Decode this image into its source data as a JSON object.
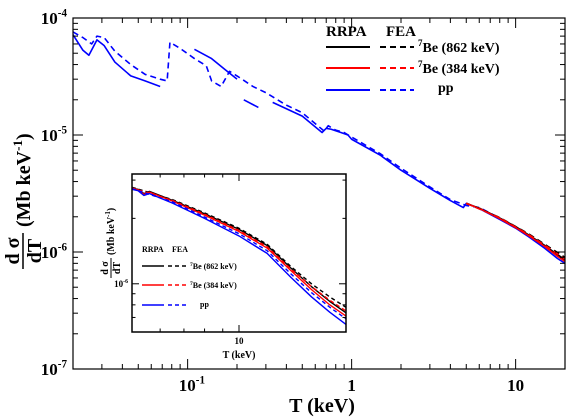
{
  "chart_data": [
    {
      "type": "line",
      "scale": {
        "x": "log",
        "y": "log"
      },
      "xlabel": "T (keV)",
      "ylabel_num": "d σ",
      "ylabel_den": "dT",
      "ylabel_unit": "(Mb keV",
      "ylabel_unit_exp": "-1",
      "ylabel_unit_close": ")",
      "xlim": [
        0.02,
        20
      ],
      "ylim": [
        1e-07,
        0.0001
      ],
      "x_ticks": [
        {
          "value": 0.1,
          "base": "10",
          "exp": "-1"
        },
        {
          "value": 1,
          "base": "1",
          "exp": ""
        },
        {
          "value": 10,
          "base": "10",
          "exp": ""
        }
      ],
      "y_ticks": [
        {
          "value": 1e-07,
          "base": "10",
          "exp": "-7"
        },
        {
          "value": 1e-06,
          "base": "10",
          "exp": "-6"
        },
        {
          "value": 1e-05,
          "base": "10",
          "exp": "-5"
        },
        {
          "value": 0.0001,
          "base": "10",
          "exp": "-4"
        }
      ],
      "legend": {
        "position": "top-right",
        "header_solid": "RRPA",
        "header_dashed": "FEA",
        "entries": [
          {
            "prefix_sup": "7",
            "text": "Be (862 keV)",
            "color": "#000000"
          },
          {
            "prefix_sup": "7",
            "text": "Be (384 keV)",
            "color": "#ff0000"
          },
          {
            "prefix_sup": "",
            "text": "pp",
            "color": "#0000ff"
          }
        ]
      },
      "series": [
        {
          "model": "RRPA",
          "source": "pp",
          "color": "#0000ff",
          "dash": false,
          "segments": [
            [
              [
                0.02,
                7.2e-05
              ],
              [
                0.023,
                5.3e-05
              ],
              [
                0.025,
                4.8e-05
              ],
              [
                0.028,
                6.5e-05
              ],
              [
                0.031,
                5.8e-05
              ],
              [
                0.036,
                4.2e-05
              ],
              [
                0.045,
                3.2e-05
              ],
              [
                0.055,
                2.9e-05
              ],
              [
                0.068,
                2.6e-05
              ]
            ],
            [
              [
                0.11,
                5.4e-05
              ],
              [
                0.14,
                4.5e-05
              ],
              [
                0.17,
                3.6e-05
              ],
              [
                0.2,
                3e-05
              ]
            ],
            [
              [
                0.22,
                2e-05
              ],
              [
                0.27,
                1.72e-05
              ]
            ],
            [
              [
                0.33,
                1.9e-05
              ],
              [
                0.5,
                1.45e-05
              ],
              [
                0.66,
                1.05e-05
              ],
              [
                0.7,
                1.14e-05
              ],
              [
                0.75,
                1.12e-05
              ],
              [
                0.86,
                1.05e-05
              ],
              [
                0.95,
                1e-05
              ],
              [
                1.0,
                9.2e-06
              ],
              [
                1.5,
                6.7e-06
              ],
              [
                2.0,
                5e-06
              ],
              [
                3.0,
                3.5e-06
              ],
              [
                4.0,
                2.75e-06
              ],
              [
                4.8,
                2.4e-06
              ],
              [
                5.0,
                2.6e-06
              ],
              [
                5.4,
                2.5e-06
              ],
              [
                6.0,
                2.35e-06
              ],
              [
                8.0,
                1.9e-06
              ],
              [
                10.0,
                1.6e-06
              ],
              [
                12.0,
                1.35e-06
              ],
              [
                15.0,
                1.08e-06
              ],
              [
                18.0,
                8.8e-07
              ],
              [
                20.0,
                8e-07
              ]
            ]
          ]
        },
        {
          "model": "FEA",
          "source": "pp",
          "color": "#0000ff",
          "dash": true,
          "segments": [
            [
              [
                0.02,
                7.6e-05
              ],
              [
                0.023,
                6.8e-05
              ],
              [
                0.026,
                6e-05
              ],
              [
                0.028,
                7e-05
              ],
              [
                0.031,
                6.8e-05
              ],
              [
                0.036,
                5.2e-05
              ],
              [
                0.045,
                4e-05
              ],
              [
                0.055,
                3.3e-05
              ],
              [
                0.068,
                3e-05
              ],
              [
                0.075,
                2.9e-05
              ],
              [
                0.078,
                6.2e-05
              ],
              [
                0.09,
                5.5e-05
              ],
              [
                0.11,
                4.5e-05
              ],
              [
                0.13,
                3.9e-05
              ],
              [
                0.14,
                2.9e-05
              ],
              [
                0.16,
                2.6e-05
              ],
              [
                0.18,
                3.5e-05
              ],
              [
                0.2,
                3.2e-05
              ],
              [
                0.25,
                2.6e-05
              ],
              [
                0.3,
                2.3e-05
              ],
              [
                0.4,
                1.8e-05
              ],
              [
                0.5,
                1.55e-05
              ],
              [
                0.6,
                1.25e-05
              ],
              [
                0.68,
                1.08e-05
              ],
              [
                0.72,
                1.2e-05
              ],
              [
                0.8,
                1.1e-05
              ],
              [
                0.9,
                1.05e-05
              ],
              [
                1.0,
                9.6e-06
              ],
              [
                1.5,
                6.9e-06
              ],
              [
                2.0,
                5.2e-06
              ],
              [
                3.0,
                3.6e-06
              ],
              [
                4.0,
                2.8e-06
              ],
              [
                5.0,
                2.5e-06
              ],
              [
                6.0,
                2.4e-06
              ],
              [
                8.0,
                1.95e-06
              ],
              [
                10.0,
                1.62e-06
              ],
              [
                15.0,
                1.12e-06
              ],
              [
                20.0,
                8.5e-07
              ]
            ]
          ]
        },
        {
          "model": "RRPA",
          "source": "7Be (862 keV)",
          "color": "#000000",
          "dash": false,
          "segments": [
            [
              [
                5.0,
                2.6e-06
              ],
              [
                6.0,
                2.37e-06
              ],
              [
                8.0,
                1.95e-06
              ],
              [
                10.0,
                1.65e-06
              ],
              [
                12.0,
                1.4e-06
              ],
              [
                15.0,
                1.14e-06
              ],
              [
                18.0,
                9.5e-07
              ],
              [
                20.0,
                8.6e-07
              ]
            ]
          ]
        },
        {
          "model": "RRPA",
          "source": "7Be (384 keV)",
          "color": "#ff0000",
          "dash": false,
          "segments": [
            [
              [
                5.0,
                2.6e-06
              ],
              [
                6.0,
                2.36e-06
              ],
              [
                8.0,
                1.93e-06
              ],
              [
                10.0,
                1.62e-06
              ],
              [
                12.0,
                1.38e-06
              ],
              [
                15.0,
                1.12e-06
              ],
              [
                18.0,
                9.2e-07
              ],
              [
                20.0,
                8.3e-07
              ]
            ]
          ]
        },
        {
          "model": "FEA",
          "source": "7Be (862 keV)",
          "color": "#000000",
          "dash": true,
          "segments": [
            [
              [
                5.0,
                2.62e-06
              ],
              [
                8.0,
                1.97e-06
              ],
              [
                12.0,
                1.43e-06
              ],
              [
                16.0,
                1.1e-06
              ],
              [
                20.0,
                9e-07
              ]
            ]
          ]
        },
        {
          "model": "FEA",
          "source": "7Be (384 keV)",
          "color": "#ff0000",
          "dash": true,
          "segments": [
            [
              [
                5.0,
                2.61e-06
              ],
              [
                8.0,
                1.96e-06
              ],
              [
                12.0,
                1.41e-06
              ],
              [
                16.0,
                1.08e-06
              ],
              [
                20.0,
                8.7e-07
              ]
            ]
          ]
        }
      ]
    },
    {
      "type": "line",
      "inset": true,
      "scale": {
        "x": "log",
        "y": "log"
      },
      "xlabel": "T (keV)",
      "ylabel_num": "d σ",
      "ylabel_den": "dT",
      "ylabel_unit": "(Mb keV",
      "ylabel_unit_exp": "-1",
      "ylabel_unit_close": ")",
      "xlim": [
        5,
        20
      ],
      "ylim": [
        6e-07,
        3.2e-06
      ],
      "x_ticks": [
        {
          "value": 10,
          "base": "10",
          "exp": ""
        }
      ],
      "y_ticks": [
        {
          "value": 1e-06,
          "base": "10",
          "exp": "-6"
        }
      ],
      "legend": {
        "position": "middle-left",
        "header_solid": "RRPA",
        "header_dashed": "FEA",
        "entries": [
          {
            "prefix_sup": "7",
            "text": "Be (862 keV)",
            "color": "#000000"
          },
          {
            "prefix_sup": "7",
            "text": "Be (384 keV)",
            "color": "#ff0000"
          },
          {
            "prefix_sup": "",
            "text": "pp",
            "color": "#0000ff"
          }
        ]
      },
      "series": [
        {
          "model": "RRPA",
          "source": "7Be (862 keV)",
          "color": "#000000",
          "dash": false,
          "segments": [
            [
              [
                5.0,
                2.75e-06
              ],
              [
                5.2,
                2.72e-06
              ],
              [
                5.4,
                2.6e-06
              ],
              [
                5.6,
                2.66e-06
              ],
              [
                6.5,
                2.42e-06
              ],
              [
                8.0,
                2.1e-06
              ],
              [
                10.0,
                1.78e-06
              ],
              [
                12.0,
                1.5e-06
              ],
              [
                14.0,
                1.18e-06
              ],
              [
                16.0,
                9.7e-07
              ],
              [
                18.0,
                8.3e-07
              ],
              [
                20.0,
                7.35e-07
              ]
            ]
          ]
        },
        {
          "model": "FEA",
          "source": "7Be (862 keV)",
          "color": "#000000",
          "dash": true,
          "segments": [
            [
              [
                5.0,
                2.78e-06
              ],
              [
                6.5,
                2.44e-06
              ],
              [
                8.0,
                2.12e-06
              ],
              [
                10.0,
                1.8e-06
              ],
              [
                12.0,
                1.52e-06
              ],
              [
                14.0,
                1.2e-06
              ],
              [
                16.0,
                1e-06
              ],
              [
                18.0,
                8.7e-07
              ],
              [
                20.0,
                7.8e-07
              ]
            ]
          ]
        },
        {
          "model": "RRPA",
          "source": "7Be (384 keV)",
          "color": "#ff0000",
          "dash": false,
          "segments": [
            [
              [
                5.0,
                2.74e-06
              ],
              [
                5.2,
                2.71e-06
              ],
              [
                5.4,
                2.58e-06
              ],
              [
                5.6,
                2.64e-06
              ],
              [
                6.5,
                2.4e-06
              ],
              [
                8.0,
                2.07e-06
              ],
              [
                10.0,
                1.74e-06
              ],
              [
                12.0,
                1.46e-06
              ],
              [
                14.0,
                1.15e-06
              ],
              [
                16.0,
                9.4e-07
              ],
              [
                18.0,
                8e-07
              ],
              [
                20.0,
                7.1e-07
              ]
            ]
          ]
        },
        {
          "model": "FEA",
          "source": "7Be (384 keV)",
          "color": "#ff0000",
          "dash": true,
          "segments": [
            [
              [
                5.0,
                2.76e-06
              ],
              [
                6.5,
                2.42e-06
              ],
              [
                8.0,
                2.09e-06
              ],
              [
                10.0,
                1.76e-06
              ],
              [
                12.0,
                1.48e-06
              ],
              [
                14.0,
                1.17e-06
              ],
              [
                16.0,
                9.7e-07
              ],
              [
                18.0,
                8.4e-07
              ],
              [
                20.0,
                7.5e-07
              ]
            ]
          ]
        },
        {
          "model": "RRPA",
          "source": "pp",
          "color": "#0000ff",
          "dash": false,
          "segments": [
            [
              [
                5.0,
                2.72e-06
              ],
              [
                5.2,
                2.68e-06
              ],
              [
                5.4,
                2.55e-06
              ],
              [
                5.6,
                2.6e-06
              ],
              [
                6.5,
                2.35e-06
              ],
              [
                8.0,
                2e-06
              ],
              [
                10.0,
                1.66e-06
              ],
              [
                12.0,
                1.38e-06
              ],
              [
                14.0,
                1.07e-06
              ],
              [
                16.0,
                8.7e-07
              ],
              [
                18.0,
                7.4e-07
              ],
              [
                20.0,
                6.5e-07
              ]
            ]
          ]
        },
        {
          "model": "FEA",
          "source": "pp",
          "color": "#0000ff",
          "dash": true,
          "segments": [
            [
              [
                5.0,
                2.74e-06
              ],
              [
                6.5,
                2.38e-06
              ],
              [
                8.0,
                2.03e-06
              ],
              [
                10.0,
                1.7e-06
              ],
              [
                12.0,
                1.42e-06
              ],
              [
                14.0,
                1.11e-06
              ],
              [
                16.0,
                9.1e-07
              ],
              [
                18.0,
                7.8e-07
              ],
              [
                20.0,
                6.9e-07
              ]
            ]
          ]
        }
      ]
    }
  ]
}
